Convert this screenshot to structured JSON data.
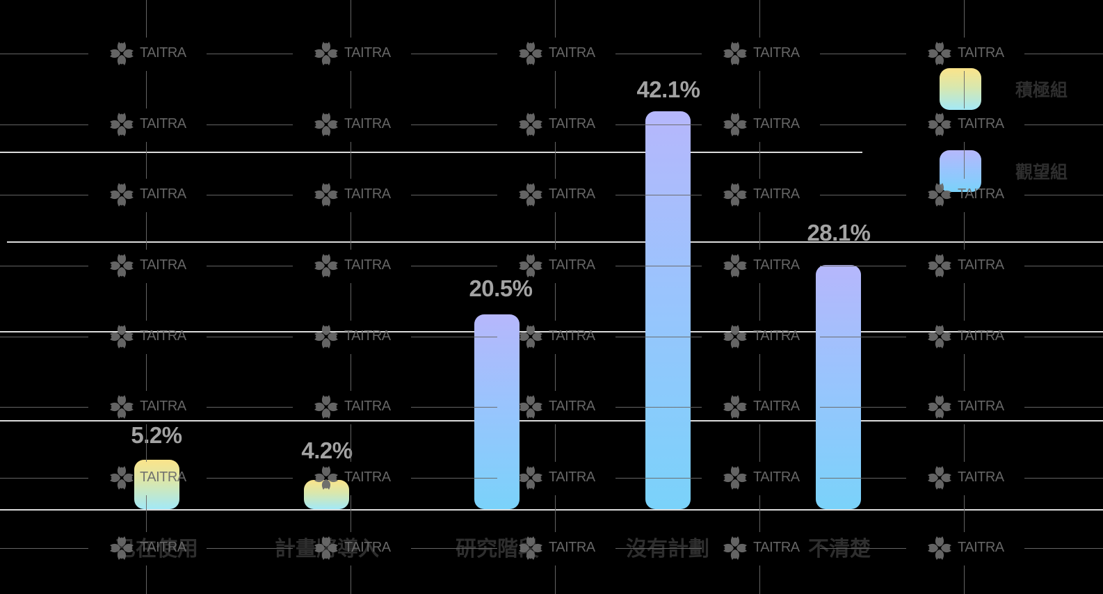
{
  "chart_data": {
    "type": "bar",
    "title": "",
    "xlabel": "",
    "ylabel": "",
    "categories": [
      "已在使用",
      "計畫將導入",
      "研究階段",
      "沒有計劃",
      "不清楚"
    ],
    "values": [
      5.2,
      4.2,
      20.5,
      42.1,
      28.1
    ],
    "value_labels": [
      "5.2%",
      "4.2%",
      "20.5%",
      "42.1%",
      "28.1%"
    ],
    "bar_group": [
      "積極組",
      "積極組",
      "觀望組",
      "觀望組",
      "觀望組"
    ],
    "series": [
      {
        "name": "積極組",
        "categories": [
          "已在使用",
          "計畫將導入"
        ],
        "values": [
          5.2,
          4.2
        ],
        "gradient": [
          "#fbe48a",
          "#a3e9f7"
        ]
      },
      {
        "name": "觀望組",
        "categories": [
          "研究階段",
          "沒有計劃",
          "不清楚"
        ],
        "values": [
          20.5,
          42.1,
          28.1
        ],
        "gradient": [
          "#b6b7fc",
          "#7ad2fa"
        ]
      }
    ],
    "legend": {
      "position": "top-right",
      "entries": [
        "積極組",
        "觀望組"
      ]
    },
    "grid": true,
    "ylim": [
      0,
      45
    ],
    "unit": "%"
  },
  "legend": {
    "items": [
      {
        "label": "積極組"
      },
      {
        "label": "觀望組"
      }
    ]
  },
  "watermark": {
    "text": "TAITRA"
  }
}
